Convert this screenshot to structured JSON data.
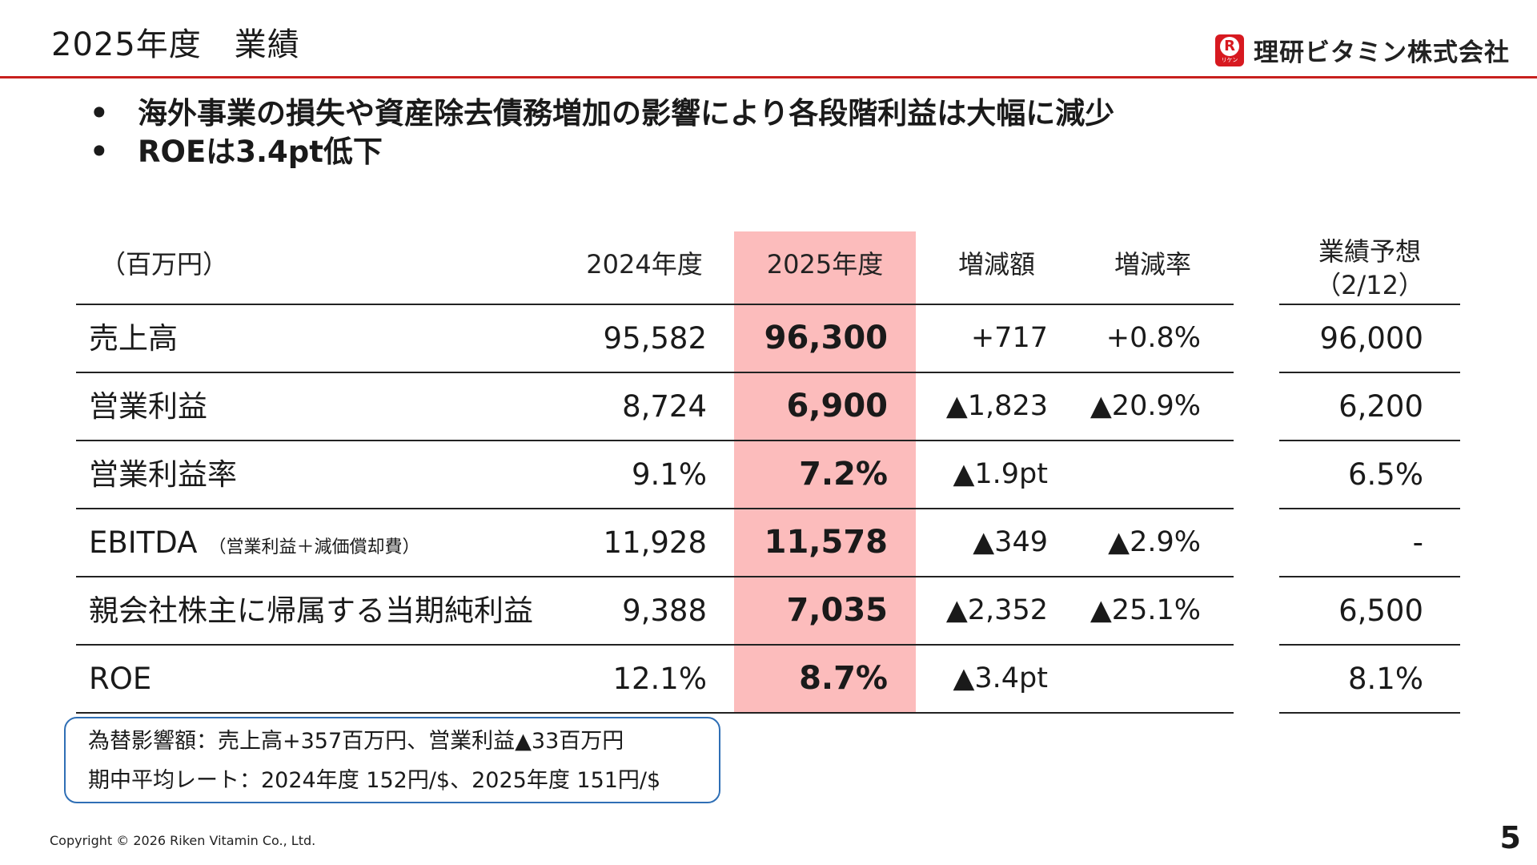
{
  "header": {
    "title": "2025年度　業績",
    "logo_mark": "R",
    "logo_mark_sub": "リケン",
    "logo_text": "理研ビタミン株式会社",
    "accent_color": "#c8201e"
  },
  "bullets": [
    "海外事業の損失や資産除去債務増加の影響により各段階利益は大幅に減少",
    "ROEは3.4pt低下"
  ],
  "bullet_symbol": "•",
  "table": {
    "highlight_color": "#fcbcbc",
    "headers": {
      "unit": "（百万円）",
      "fy2024": "2024年度",
      "fy2025": "2025年度",
      "change_amount": "増減額",
      "change_rate": "増減率",
      "forecast_line1": "業績予想",
      "forecast_line2": "（2/12）"
    },
    "rows": [
      {
        "label": "売上高",
        "note": "",
        "fy2024": "95,582",
        "fy2025": "96,300",
        "change_amount": "+717",
        "change_rate": "+0.8%",
        "forecast": "96,000"
      },
      {
        "label": "営業利益",
        "note": "",
        "fy2024": "8,724",
        "fy2025": "6,900",
        "change_amount": "▲1,823",
        "change_rate": "▲20.9%",
        "forecast": "6,200"
      },
      {
        "label": "営業利益率",
        "note": "",
        "fy2024": "9.1%",
        "fy2025": "7.2%",
        "change_amount": "▲1.9pt",
        "change_rate": "",
        "forecast": "6.5%"
      },
      {
        "label": "EBITDA",
        "note": "（営業利益＋減価償却費）",
        "fy2024": "11,928",
        "fy2025": "11,578",
        "change_amount": "▲349",
        "change_rate": "▲2.9%",
        "forecast": "-"
      },
      {
        "label": "親会社株主に帰属する当期純利益",
        "note": "",
        "fy2024": "9,388",
        "fy2025": "7,035",
        "change_amount": "▲2,352",
        "change_rate": "▲25.1%",
        "forecast": "6,500"
      },
      {
        "label": "ROE",
        "note": "",
        "fy2024": "12.1%",
        "fy2025": "8.7%",
        "change_amount": "▲3.4pt",
        "change_rate": "",
        "forecast": "8.1%"
      }
    ]
  },
  "notes": {
    "line1": "為替影響額：売上高+357百万円、営業利益▲33百万円",
    "line2": "期中平均レート：2024年度 152円/$、2025年度 151円/$"
  },
  "footer": {
    "copyright": "Copyright © 2026 Riken Vitamin Co., Ltd.",
    "page_number": "5"
  }
}
